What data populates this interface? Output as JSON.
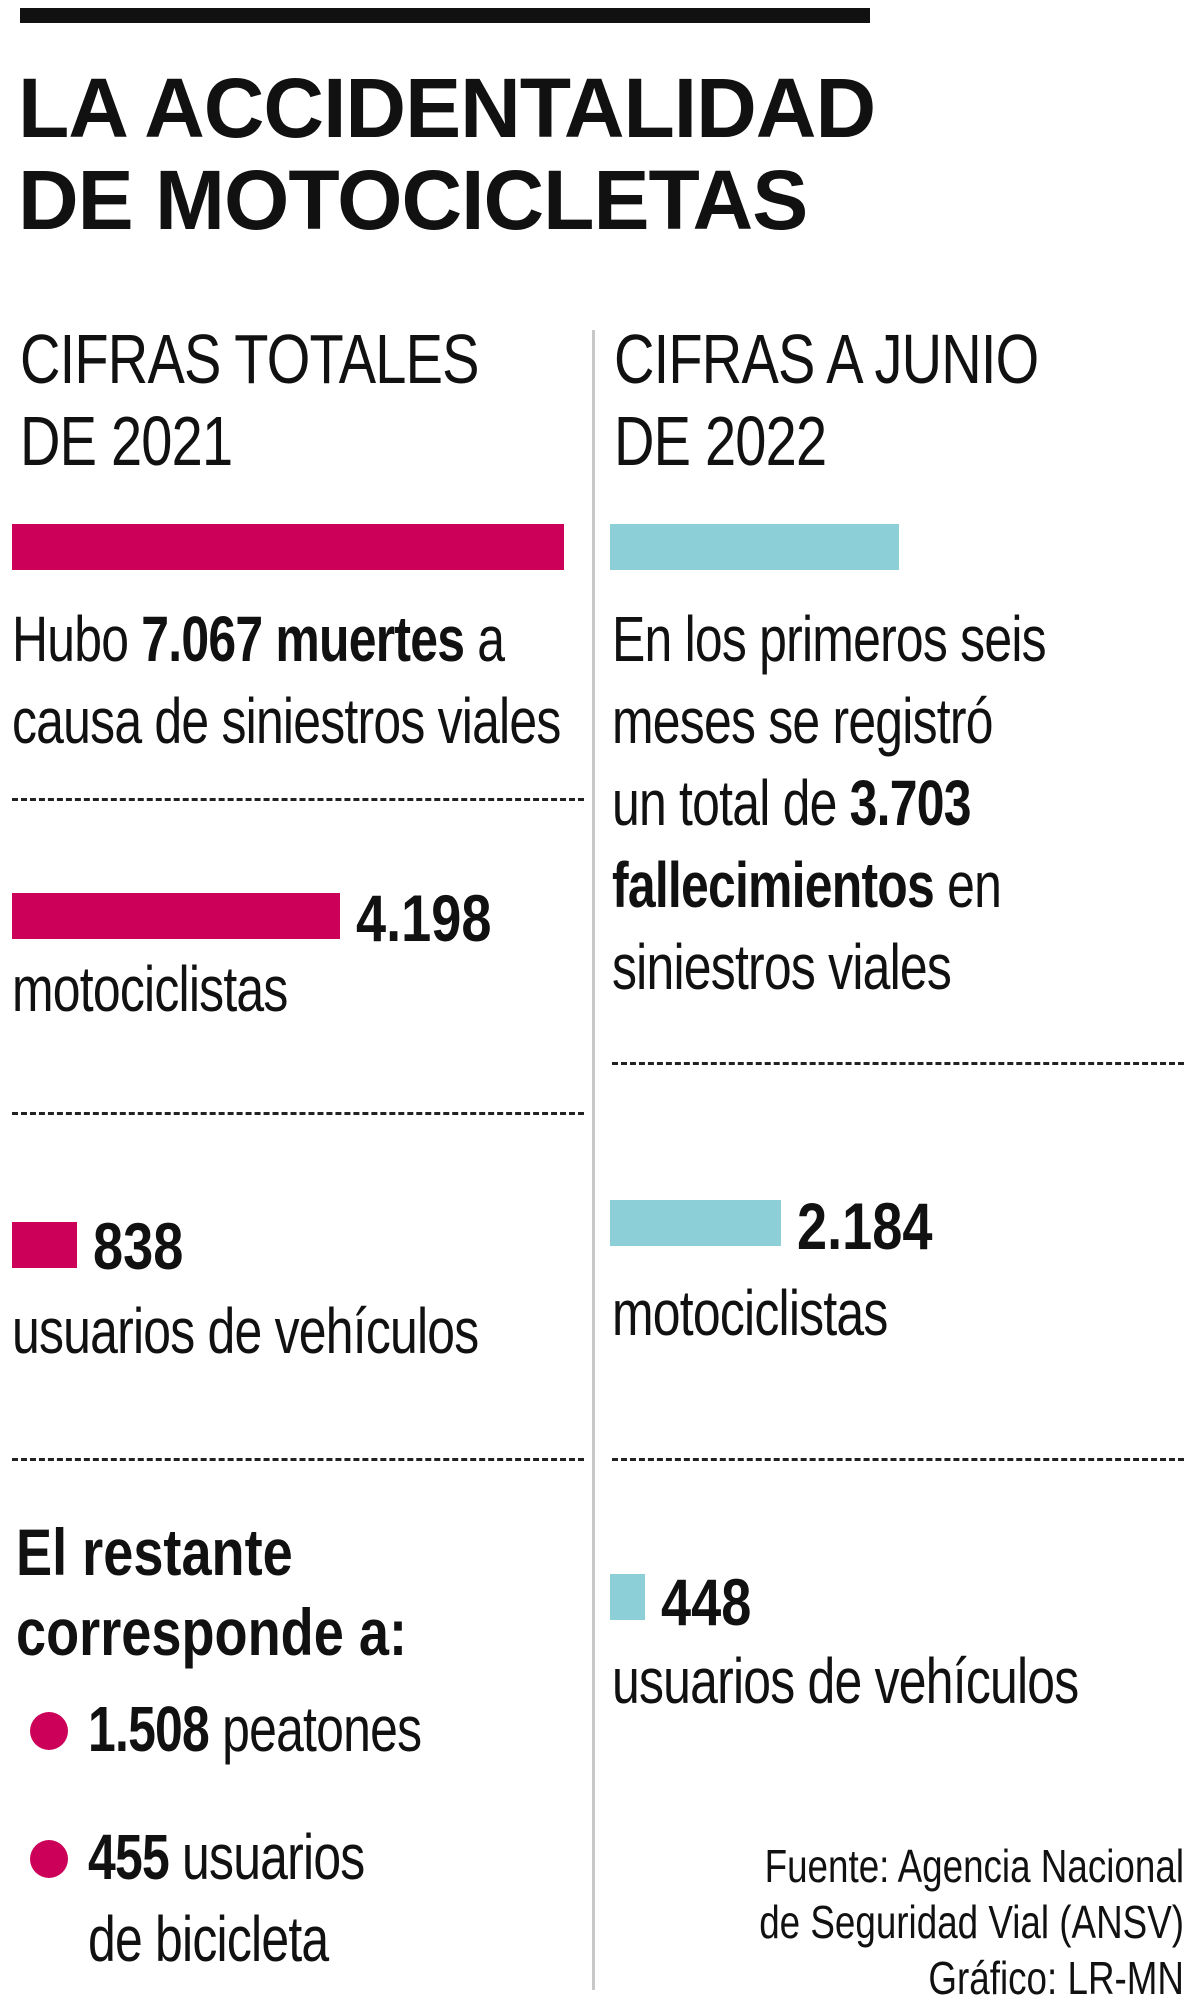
{
  "colors": {
    "magenta": "#cc0058",
    "cyan": "#8ccfd6",
    "ink": "#111111"
  },
  "title": {
    "line1": "LA ACCIDENTALIDAD",
    "line2": "DE MOTOCICLETAS"
  },
  "left": {
    "heading1": "CIFRAS TOTALES",
    "heading2": "DE 2021",
    "total": {
      "pre": "Hubo ",
      "value": "7.067",
      "mid": " muertes",
      "post": " a",
      "line2": "causa de siniestros viales"
    },
    "moto": {
      "value": "4.198",
      "label": "motociclistas"
    },
    "vehic": {
      "value": "838",
      "label": "usuarios de vehículos"
    },
    "rest": {
      "line1": "El restante",
      "line2": "corresponde a:"
    },
    "peatones": {
      "value": "1.508",
      "label": " peatones"
    },
    "bici": {
      "value": "455",
      "label": " usuarios",
      "label2": "de bicicleta"
    }
  },
  "right": {
    "heading1": "CIFRAS A JUNIO",
    "heading2": "DE 2022",
    "total": {
      "line1": "En los primeros seis",
      "line2": "meses se registró",
      "line3pre": "un total de ",
      "value": "3.703",
      "word": "fallecimientos",
      "post": " en",
      "line5": "siniestros viales"
    },
    "moto": {
      "value": "2.184",
      "label": "motociclistas"
    },
    "vehic": {
      "value": "448",
      "label": "usuarios de vehículos"
    }
  },
  "source": {
    "line1": "Fuente: Agencia Nacional",
    "line2": "de Seguridad Vial (ANSV)",
    "line3": "Gráfico: LR-MN"
  },
  "chart_data": {
    "type": "bar",
    "series": [
      {
        "name": "CIFRAS TOTALES DE 2021",
        "categories": [
          "total",
          "motociclistas",
          "usuarios de vehículos"
        ],
        "values": [
          7067,
          4198,
          838
        ]
      },
      {
        "name": "CIFRAS A JUNIO DE 2022",
        "categories": [
          "total",
          "motociclistas",
          "usuarios de vehículos"
        ],
        "values": [
          3703,
          2184,
          448
        ]
      }
    ]
  }
}
